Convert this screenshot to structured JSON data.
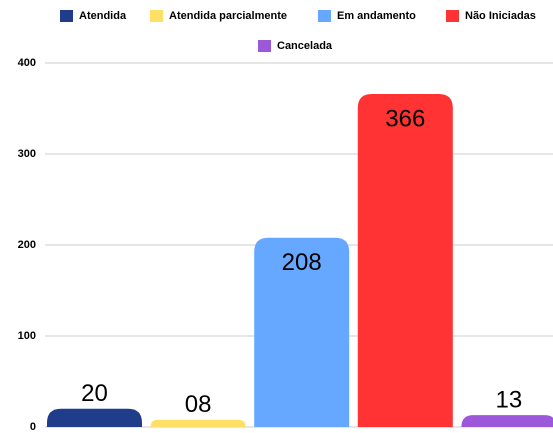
{
  "chart_data": {
    "type": "bar",
    "series": [
      {
        "name": "Atendida",
        "color": "#1f3d8a",
        "values": [
          20
        ],
        "value_labels": [
          "20"
        ]
      },
      {
        "name": "Atendida parcialmente",
        "color": "#ffe066",
        "values": [
          8
        ],
        "value_labels": [
          "08"
        ]
      },
      {
        "name": "Em andamento",
        "color": "#66a8ff",
        "values": [
          208
        ],
        "value_labels": [
          "208"
        ]
      },
      {
        "name": "Não Iniciadas",
        "color": "#ff3333",
        "values": [
          366
        ],
        "value_labels": [
          "366"
        ]
      },
      {
        "name": "Cancelada",
        "color": "#9b59d9",
        "values": [
          13
        ],
        "value_labels": [
          "13"
        ]
      }
    ],
    "ylim": [
      0,
      400
    ],
    "yticks": [
      0,
      100,
      200,
      300,
      400
    ],
    "grid": true,
    "legend": "top"
  }
}
